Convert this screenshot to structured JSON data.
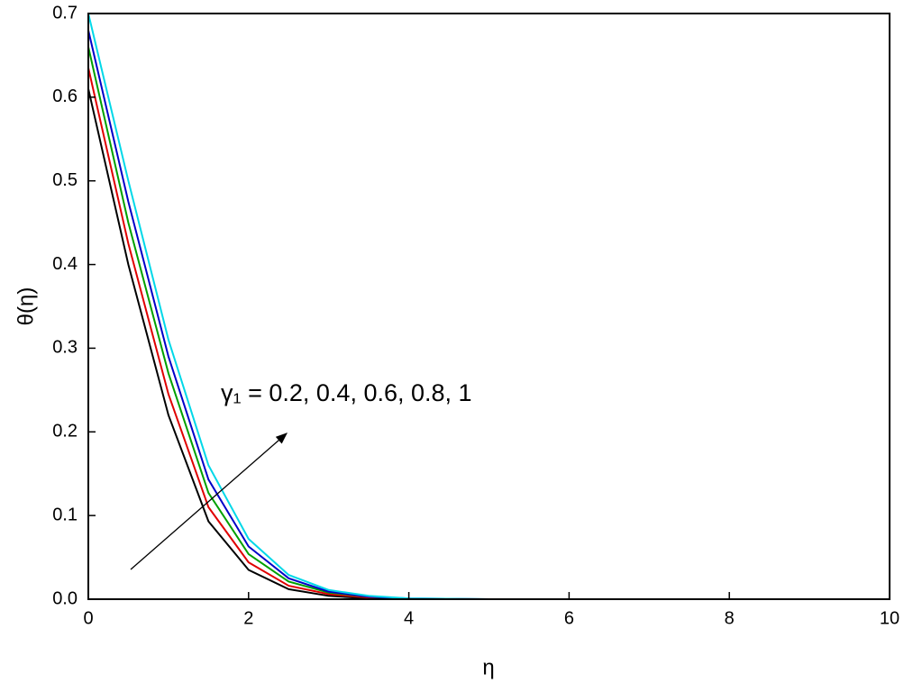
{
  "chart_data": {
    "type": "line",
    "x_label": "η",
    "y_label": "θ(η)",
    "annotation": "γ₁ = 0.2, 0.4, 0.6, 0.8, 1",
    "x": [
      0,
      0.5,
      1,
      1.5,
      2,
      2.5,
      3,
      3.5,
      4,
      5,
      6,
      8,
      10
    ],
    "series": [
      {
        "color": "#000000",
        "values": [
          0.61,
          0.4,
          0.22,
          0.093,
          0.035,
          0.012,
          0.004,
          0.001,
          0,
          0,
          0,
          0,
          0
        ]
      },
      {
        "color": "#e00000",
        "values": [
          0.635,
          0.425,
          0.245,
          0.11,
          0.044,
          0.016,
          0.006,
          0.002,
          0,
          0,
          0,
          0,
          0
        ]
      },
      {
        "color": "#00a000",
        "values": [
          0.66,
          0.45,
          0.27,
          0.127,
          0.054,
          0.021,
          0.008,
          0.003,
          0,
          0,
          0,
          0,
          0
        ]
      },
      {
        "color": "#0000c8",
        "values": [
          0.68,
          0.475,
          0.29,
          0.143,
          0.063,
          0.025,
          0.009,
          0.003,
          0.001,
          0,
          0,
          0,
          0
        ]
      },
      {
        "color": "#00d8e8",
        "values": [
          0.7,
          0.5,
          0.31,
          0.16,
          0.072,
          0.029,
          0.011,
          0.004,
          0.001,
          0,
          0,
          0,
          0
        ]
      }
    ],
    "xlim": [
      0,
      10
    ],
    "xticks": [
      0,
      2,
      4,
      6,
      8,
      10
    ],
    "ylim": [
      0,
      0.7
    ],
    "yticks": [
      {
        "value": 0,
        "label": "0.0"
      },
      0.1,
      0.2,
      0.3,
      0.4,
      0.5,
      0.6,
      0.7
    ],
    "grid": false
  }
}
